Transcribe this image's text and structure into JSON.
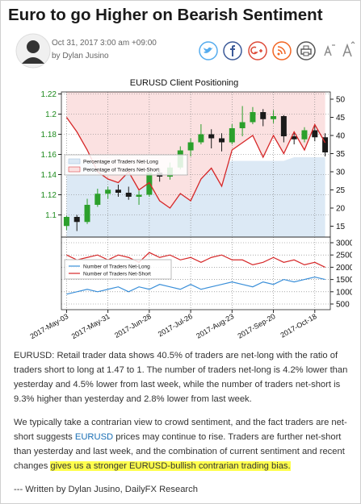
{
  "header": {
    "title": "Euro to go Higher on Bearish Sentiment",
    "date": "Oct 31, 2017 3:00 am +09:00",
    "author": "by Dylan Jusino"
  },
  "chart_data": [
    {
      "type": "candlestick",
      "title": "EURUSD Client Positioning",
      "categories": [
        "2017-May-03",
        null,
        null,
        null,
        "2017-May-31",
        null,
        null,
        null,
        "2017-Jun-28",
        null,
        null,
        null,
        "2017-Jul-26",
        null,
        null,
        null,
        "2017-Aug-23",
        null,
        null,
        null,
        "2017-Sep-20",
        null,
        null,
        null,
        "2017-Oct-18",
        null
      ],
      "open": [
        1.089,
        1.098,
        1.093,
        1.11,
        1.121,
        1.125,
        1.122,
        1.118,
        1.12,
        1.142,
        1.138,
        1.147,
        1.164,
        1.172,
        1.18,
        1.176,
        1.172,
        1.186,
        1.192,
        1.202,
        1.195,
        1.198,
        1.178,
        1.175,
        1.184,
        1.177
      ],
      "high": [
        1.099,
        1.1,
        1.116,
        1.126,
        1.128,
        1.13,
        1.128,
        1.124,
        1.145,
        1.146,
        1.152,
        1.168,
        1.176,
        1.19,
        1.185,
        1.181,
        1.19,
        1.208,
        1.207,
        1.205,
        1.204,
        1.199,
        1.182,
        1.187,
        1.188,
        1.181
      ],
      "low": [
        1.085,
        1.084,
        1.091,
        1.108,
        1.116,
        1.118,
        1.115,
        1.11,
        1.118,
        1.133,
        1.135,
        1.145,
        1.158,
        1.17,
        1.166,
        1.163,
        1.17,
        1.178,
        1.19,
        1.188,
        1.191,
        1.172,
        1.17,
        1.172,
        1.173,
        1.158
      ],
      "close": [
        1.098,
        1.093,
        1.11,
        1.121,
        1.125,
        1.122,
        1.118,
        1.12,
        1.142,
        1.138,
        1.147,
        1.164,
        1.172,
        1.18,
        1.176,
        1.172,
        1.186,
        1.192,
        1.202,
        1.195,
        1.198,
        1.178,
        1.175,
        1.184,
        1.177,
        1.162
      ],
      "up_color": "#2ca02c",
      "down_color": "#1a1a1a",
      "ylim": [
        1.078,
        1.222
      ],
      "yticks": [
        1.1,
        1.12,
        1.14,
        1.16,
        1.18,
        1.2,
        1.22
      ],
      "ytick_color": "#1e8b1e",
      "y2lim": [
        12,
        52
      ],
      "y2ticks": [
        15,
        20,
        25,
        30,
        35,
        40,
        45,
        50
      ],
      "grid": true,
      "series": [
        {
          "name": "Percentage of Traders Net-Long",
          "color": "#dce9f5",
          "axis": "y2",
          "fill": "below",
          "values": [
            33,
            33,
            33,
            32,
            32,
            32,
            32,
            32,
            31,
            31,
            31,
            31,
            31,
            32,
            32,
            32,
            33,
            33,
            33,
            33,
            33,
            33,
            34,
            34,
            34,
            34
          ]
        },
        {
          "name": "Percentage of Traders Net-Short",
          "color": "#fbe1e1",
          "line_color": "#d62728",
          "axis": "y2",
          "fill": "above",
          "values": [
            45,
            41,
            36,
            30,
            28,
            27,
            30,
            25,
            27,
            22,
            20,
            24,
            22,
            28,
            31,
            26,
            36,
            38,
            40,
            34,
            40,
            35,
            41,
            36,
            43,
            38
          ]
        }
      ]
    },
    {
      "type": "line",
      "ylim": [
        270,
        3230
      ],
      "yticks": [
        500,
        1000,
        1500,
        2000,
        2500,
        3000
      ],
      "grid": true,
      "series": [
        {
          "name": "Number of Traders Net-Long",
          "color": "#3a8fd9",
          "values": [
            900,
            1000,
            1100,
            1000,
            1100,
            1200,
            1000,
            1200,
            1100,
            1300,
            1200,
            1100,
            1300,
            1100,
            1200,
            1300,
            1400,
            1300,
            1200,
            1400,
            1300,
            1500,
            1400,
            1500,
            1600,
            1500
          ]
        },
        {
          "name": "Number of Traders Net-Short",
          "color": "#d62728",
          "values": [
            2500,
            2300,
            2400,
            2500,
            2300,
            2500,
            2400,
            2200,
            2600,
            2400,
            2500,
            2300,
            2400,
            2200,
            2400,
            2500,
            2300,
            2300,
            2100,
            2200,
            2400,
            2200,
            2300,
            2100,
            2200,
            2000
          ]
        }
      ]
    }
  ],
  "article": {
    "paragraphs": [
      "EURUSD: Retail trader data shows 40.5% of traders are net-long with the ratio of traders short to long at 1.47 to 1. The number of traders net-long is 4.2% lower than yesterday and 4.5% lower from last week, while the number of traders net-short is 9.3% higher than yesterday and 2.8% lower from last week.",
      [
        "We typically take a contrarian view to crowd sentiment, and the fact traders are net-short suggests ",
        "EURUSD",
        " prices may continue to rise. Traders are further net-short than yesterday and last week, and the combination of current sentiment and recent changes ",
        "gives us a stronger EURUSD-bullish contrarian trading bias."
      ]
    ],
    "footer": "--- Written by Dylan Jusino, DailyFX Research"
  }
}
